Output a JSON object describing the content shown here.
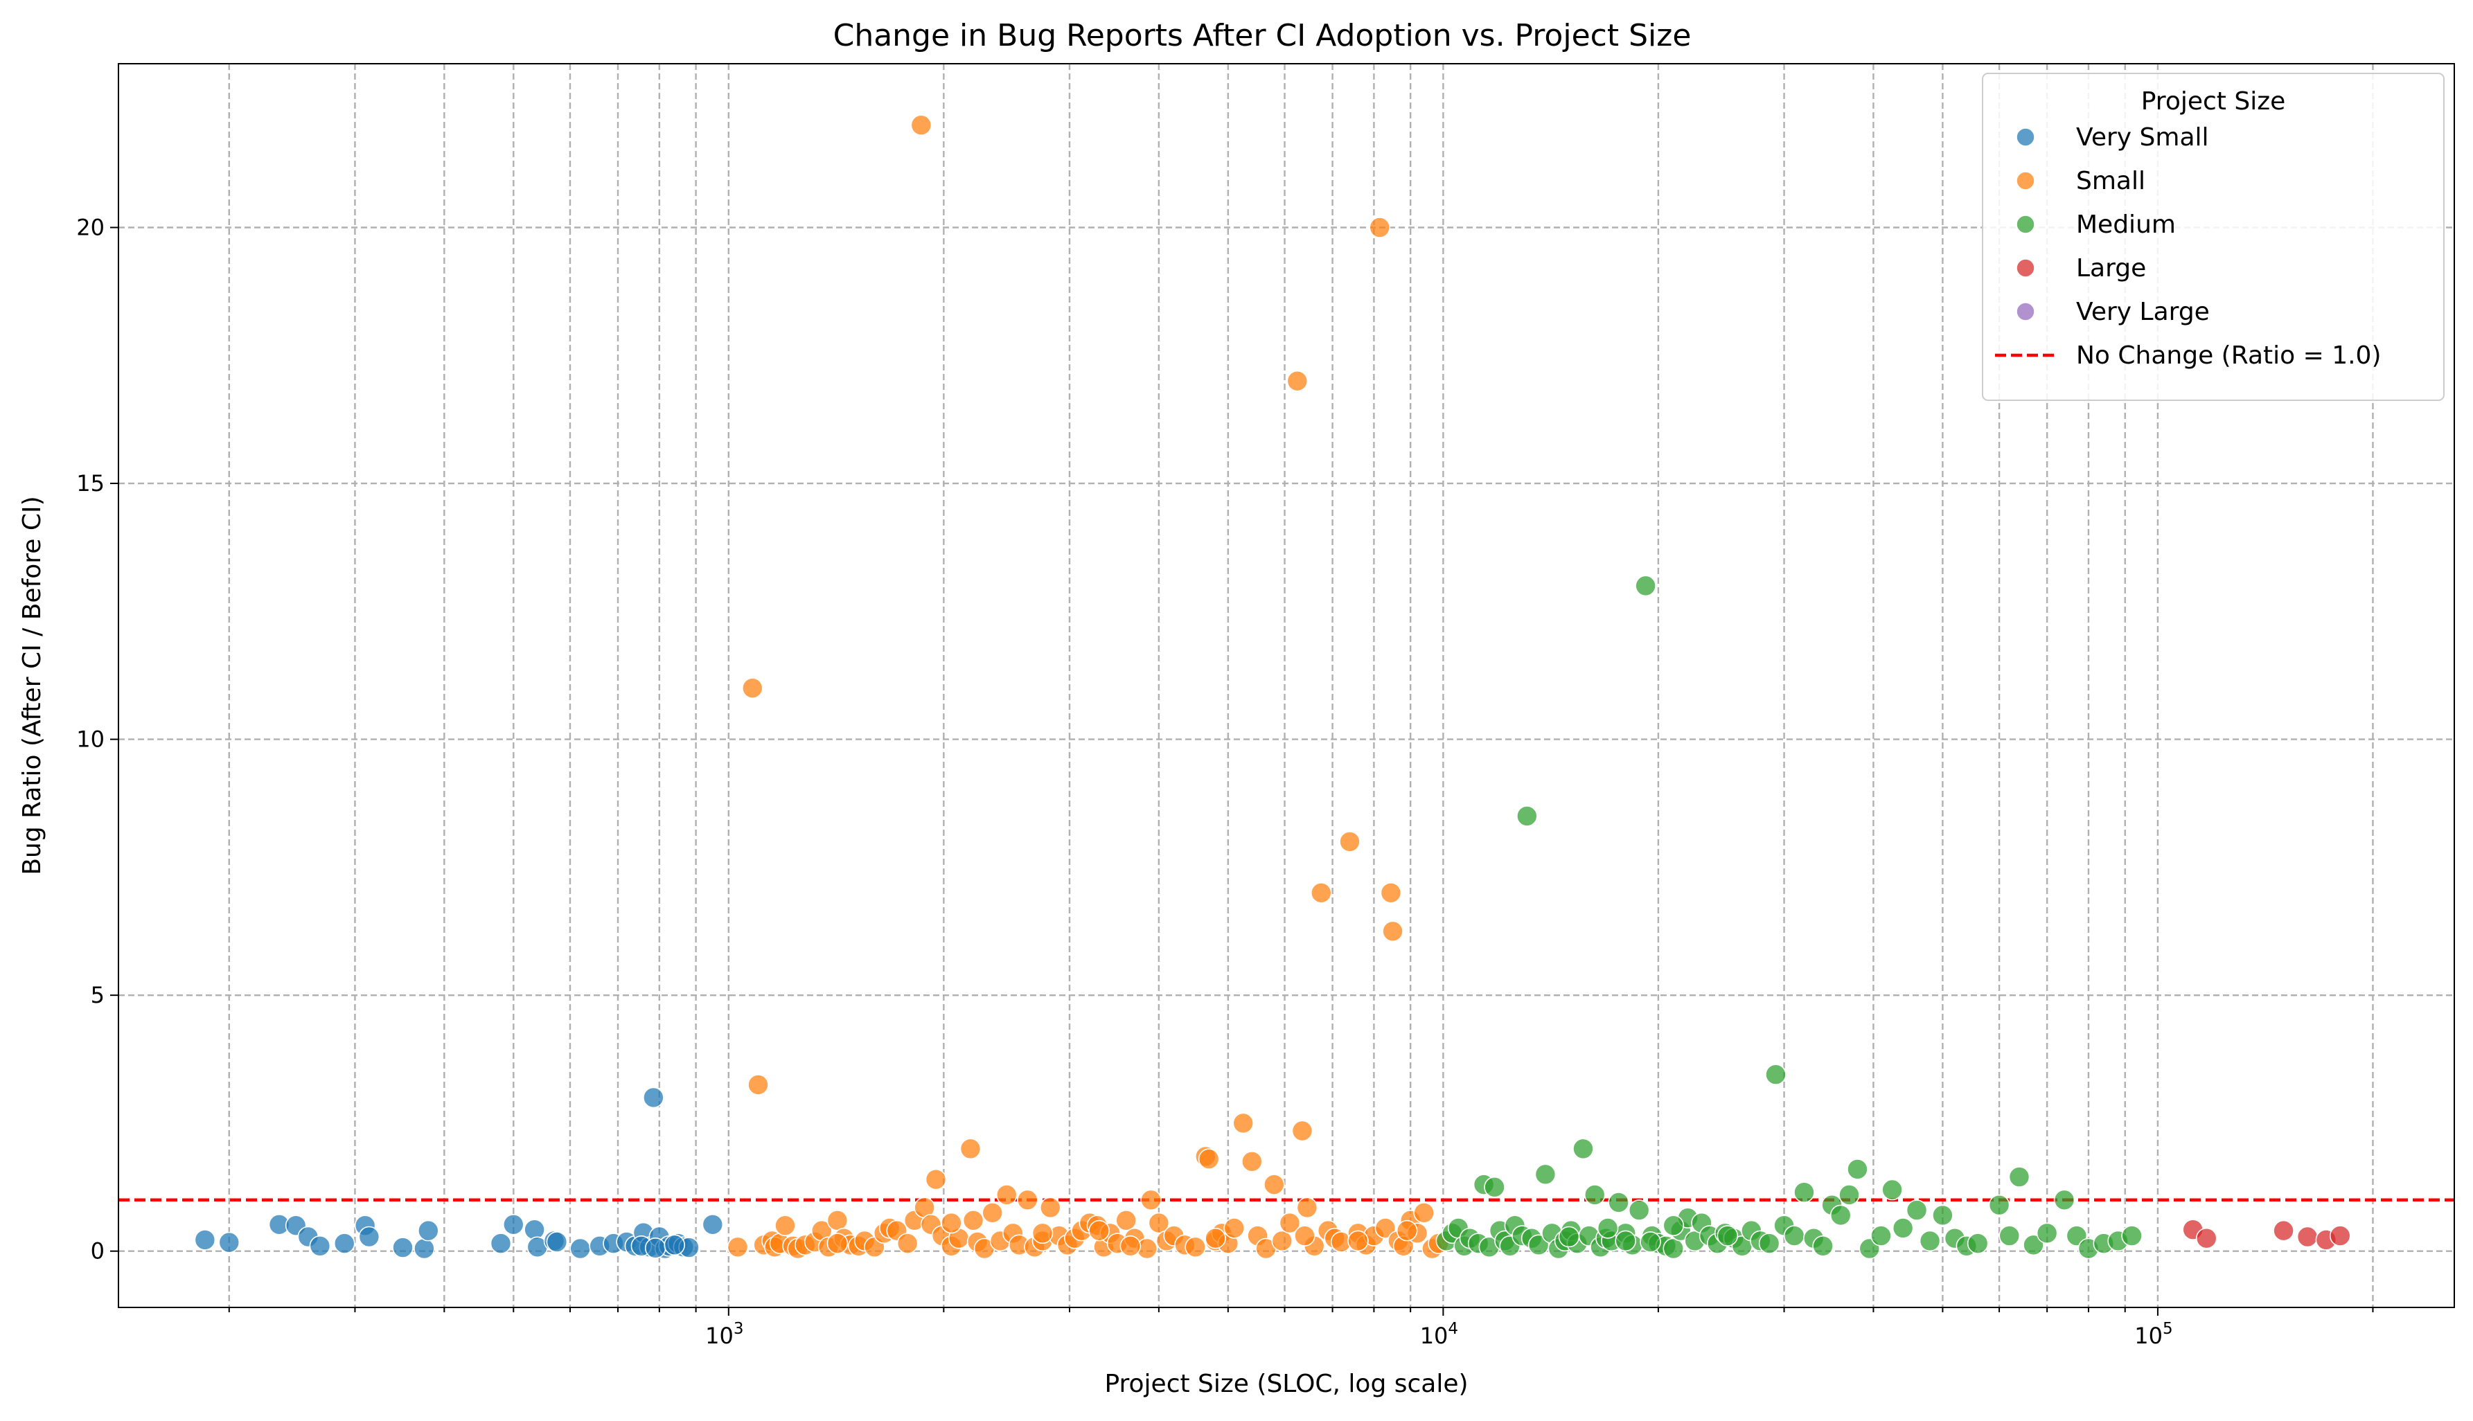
{
  "chart_data": {
    "type": "scatter",
    "title": "Change in Bug Reports After CI Adoption vs. Project Size",
    "xlabel": "Project Size (SLOC, log scale)",
    "ylabel": "Bug Ratio (After CI / Before CI)",
    "xscale": "log",
    "xlim": [
      140,
      260000
    ],
    "ylim": [
      -1.1,
      23.2
    ],
    "xticks": [
      {
        "value": 1000,
        "base": "10",
        "exp": "3"
      },
      {
        "value": 10000,
        "base": "10",
        "exp": "4"
      },
      {
        "value": 100000,
        "base": "10",
        "exp": "5"
      }
    ],
    "yticks": [
      0,
      5,
      10,
      15,
      20
    ],
    "grid": true,
    "legend": {
      "title": "Project Size",
      "placement": "top-right",
      "entries": [
        {
          "label": "Very Small",
          "color": "#1f77b4",
          "kind": "marker"
        },
        {
          "label": "Small",
          "color": "#ff7f0e",
          "kind": "marker"
        },
        {
          "label": "Medium",
          "color": "#2ca02c",
          "kind": "marker"
        },
        {
          "label": "Large",
          "color": "#d62728",
          "kind": "marker"
        },
        {
          "label": "Very Large",
          "color": "#9467bd",
          "kind": "marker"
        },
        {
          "label": "No Change (Ratio = 1.0)",
          "color": "#ff0000",
          "kind": "dashed-line"
        }
      ]
    },
    "reference_line": {
      "y": 1.0,
      "color": "#ff0000",
      "style": "dashed"
    },
    "series": [
      {
        "name": "Very Small",
        "color": "#1f77b4",
        "points": [
          [
            185,
            0.22
          ],
          [
            200,
            0.17
          ],
          [
            235,
            0.52
          ],
          [
            248,
            0.5
          ],
          [
            258,
            0.28
          ],
          [
            268,
            0.1
          ],
          [
            290,
            0.15
          ],
          [
            310,
            0.5
          ],
          [
            314,
            0.28
          ],
          [
            350,
            0.07
          ],
          [
            375,
            0.05
          ],
          [
            380,
            0.4
          ],
          [
            480,
            0.15
          ],
          [
            500,
            0.52
          ],
          [
            535,
            0.42
          ],
          [
            540,
            0.08
          ],
          [
            570,
            0.2
          ],
          [
            575,
            0.18
          ],
          [
            620,
            0.05
          ],
          [
            660,
            0.1
          ],
          [
            690,
            0.15
          ],
          [
            720,
            0.18
          ],
          [
            740,
            0.1
          ],
          [
            760,
            0.36
          ],
          [
            775,
            0.08
          ],
          [
            785,
            3.0
          ],
          [
            800,
            0.28
          ],
          [
            815,
            0.05
          ],
          [
            825,
            0.1
          ],
          [
            850,
            0.15
          ],
          [
            865,
            0.08
          ],
          [
            880,
            0.07
          ],
          [
            950,
            0.52
          ],
          [
            755,
            0.1
          ],
          [
            790,
            0.06
          ],
          [
            840,
            0.12
          ]
        ]
      },
      {
        "name": "Small",
        "color": "#ff7f0e",
        "points": [
          [
            1030,
            0.08
          ],
          [
            1080,
            11.0
          ],
          [
            1100,
            3.25
          ],
          [
            1120,
            0.12
          ],
          [
            1150,
            0.2
          ],
          [
            1160,
            0.08
          ],
          [
            1180,
            0.15
          ],
          [
            1200,
            0.5
          ],
          [
            1230,
            0.1
          ],
          [
            1250,
            0.05
          ],
          [
            1280,
            0.12
          ],
          [
            1320,
            0.18
          ],
          [
            1350,
            0.4
          ],
          [
            1380,
            0.08
          ],
          [
            1420,
            0.6
          ],
          [
            1450,
            0.25
          ],
          [
            1480,
            0.12
          ],
          [
            1520,
            0.1
          ],
          [
            1550,
            0.2
          ],
          [
            1600,
            0.08
          ],
          [
            1650,
            0.35
          ],
          [
            1680,
            0.45
          ],
          [
            1720,
            0.4
          ],
          [
            1780,
            0.15
          ],
          [
            1820,
            0.6
          ],
          [
            1860,
            22.0
          ],
          [
            1880,
            0.85
          ],
          [
            1920,
            0.52
          ],
          [
            1950,
            1.4
          ],
          [
            1990,
            0.3
          ],
          [
            2050,
            0.1
          ],
          [
            2100,
            0.25
          ],
          [
            2180,
            2.0
          ],
          [
            2200,
            0.6
          ],
          [
            2230,
            0.18
          ],
          [
            2280,
            0.05
          ],
          [
            2340,
            0.75
          ],
          [
            2400,
            0.2
          ],
          [
            2450,
            1.1
          ],
          [
            2500,
            0.35
          ],
          [
            2550,
            0.12
          ],
          [
            2620,
            1.0
          ],
          [
            2680,
            0.08
          ],
          [
            2750,
            0.2
          ],
          [
            2820,
            0.85
          ],
          [
            2900,
            0.3
          ],
          [
            2980,
            0.12
          ],
          [
            3050,
            0.25
          ],
          [
            3120,
            0.4
          ],
          [
            3200,
            0.55
          ],
          [
            3280,
            0.5
          ],
          [
            3350,
            0.08
          ],
          [
            3420,
            0.35
          ],
          [
            3500,
            0.15
          ],
          [
            3600,
            0.6
          ],
          [
            3700,
            0.25
          ],
          [
            3850,
            0.05
          ],
          [
            3900,
            1.0
          ],
          [
            4000,
            0.55
          ],
          [
            4100,
            0.2
          ],
          [
            4200,
            0.3
          ],
          [
            4350,
            0.12
          ],
          [
            4500,
            0.08
          ],
          [
            4650,
            1.85
          ],
          [
            4700,
            1.8
          ],
          [
            4800,
            0.2
          ],
          [
            4900,
            0.35
          ],
          [
            5000,
            0.15
          ],
          [
            5100,
            0.45
          ],
          [
            5250,
            2.5
          ],
          [
            5400,
            1.75
          ],
          [
            5500,
            0.3
          ],
          [
            5650,
            0.05
          ],
          [
            5800,
            1.3
          ],
          [
            5950,
            0.2
          ],
          [
            6100,
            0.55
          ],
          [
            6250,
            17.0
          ],
          [
            6350,
            2.35
          ],
          [
            6450,
            0.85
          ],
          [
            6600,
            0.1
          ],
          [
            6750,
            7.0
          ],
          [
            6900,
            0.4
          ],
          [
            7050,
            0.25
          ],
          [
            7200,
            0.18
          ],
          [
            7400,
            8.0
          ],
          [
            7600,
            0.35
          ],
          [
            7800,
            0.12
          ],
          [
            8000,
            0.3
          ],
          [
            8150,
            20.0
          ],
          [
            8300,
            0.45
          ],
          [
            8450,
            7.0
          ],
          [
            8500,
            6.25
          ],
          [
            8650,
            0.2
          ],
          [
            8800,
            0.1
          ],
          [
            9000,
            0.6
          ],
          [
            9200,
            0.35
          ],
          [
            9400,
            0.75
          ],
          [
            9650,
            0.05
          ],
          [
            9850,
            0.15
          ],
          [
            2750,
            0.35
          ],
          [
            3300,
            0.4
          ],
          [
            4800,
            0.25
          ],
          [
            6400,
            0.3
          ],
          [
            7600,
            0.2
          ],
          [
            8900,
            0.4
          ],
          [
            1420,
            0.15
          ],
          [
            2050,
            0.55
          ],
          [
            3650,
            0.1
          ]
        ]
      },
      {
        "name": "Medium",
        "color": "#2ca02c",
        "points": [
          [
            10100,
            0.2
          ],
          [
            10300,
            0.35
          ],
          [
            10500,
            0.45
          ],
          [
            10700,
            0.1
          ],
          [
            10900,
            0.25
          ],
          [
            11200,
            0.15
          ],
          [
            11400,
            1.3
          ],
          [
            11600,
            0.08
          ],
          [
            11800,
            1.25
          ],
          [
            12000,
            0.4
          ],
          [
            12200,
            0.2
          ],
          [
            12400,
            0.1
          ],
          [
            12600,
            0.5
          ],
          [
            12900,
            0.3
          ],
          [
            13100,
            8.5
          ],
          [
            13300,
            0.25
          ],
          [
            13600,
            0.12
          ],
          [
            13900,
            1.5
          ],
          [
            14200,
            0.35
          ],
          [
            14500,
            0.05
          ],
          [
            14800,
            0.2
          ],
          [
            15100,
            0.4
          ],
          [
            15400,
            0.15
          ],
          [
            15700,
            2.0
          ],
          [
            16000,
            0.3
          ],
          [
            16300,
            1.1
          ],
          [
            16600,
            0.08
          ],
          [
            16900,
            0.25
          ],
          [
            17200,
            0.2
          ],
          [
            17600,
            0.95
          ],
          [
            18000,
            0.35
          ],
          [
            18400,
            0.12
          ],
          [
            18800,
            0.8
          ],
          [
            19200,
            13.0
          ],
          [
            19600,
            0.3
          ],
          [
            20000,
            0.15
          ],
          [
            20500,
            0.1
          ],
          [
            21000,
            0.05
          ],
          [
            21500,
            0.4
          ],
          [
            22000,
            0.65
          ],
          [
            22500,
            0.2
          ],
          [
            23000,
            0.55
          ],
          [
            23600,
            0.3
          ],
          [
            24200,
            0.15
          ],
          [
            24800,
            0.35
          ],
          [
            25500,
            0.25
          ],
          [
            26200,
            0.1
          ],
          [
            27000,
            0.4
          ],
          [
            27800,
            0.2
          ],
          [
            28600,
            0.15
          ],
          [
            29200,
            3.45
          ],
          [
            30000,
            0.5
          ],
          [
            31000,
            0.3
          ],
          [
            32000,
            1.15
          ],
          [
            33000,
            0.25
          ],
          [
            34000,
            0.1
          ],
          [
            35000,
            0.9
          ],
          [
            36000,
            0.7
          ],
          [
            37000,
            1.1
          ],
          [
            38000,
            1.6
          ],
          [
            39500,
            0.05
          ],
          [
            41000,
            0.3
          ],
          [
            42500,
            1.2
          ],
          [
            44000,
            0.45
          ],
          [
            46000,
            0.8
          ],
          [
            48000,
            0.2
          ],
          [
            50000,
            0.7
          ],
          [
            52000,
            0.25
          ],
          [
            54000,
            0.1
          ],
          [
            56000,
            0.15
          ],
          [
            60000,
            0.9
          ],
          [
            62000,
            0.3
          ],
          [
            64000,
            1.45
          ],
          [
            67000,
            0.12
          ],
          [
            70000,
            0.35
          ],
          [
            74000,
            1.0
          ],
          [
            77000,
            0.3
          ],
          [
            80000,
            0.05
          ],
          [
            84000,
            0.15
          ],
          [
            88000,
            0.2
          ],
          [
            92000,
            0.3
          ],
          [
            18000,
            0.2
          ],
          [
            21000,
            0.5
          ],
          [
            25000,
            0.3
          ],
          [
            15000,
            0.28
          ],
          [
            17000,
            0.45
          ],
          [
            19500,
            0.18
          ]
        ]
      },
      {
        "name": "Large",
        "color": "#d62728",
        "points": [
          [
            112000,
            0.42
          ],
          [
            117000,
            0.25
          ],
          [
            150000,
            0.4
          ],
          [
            162000,
            0.28
          ],
          [
            172000,
            0.22
          ],
          [
            180000,
            0.3
          ]
        ]
      },
      {
        "name": "Very Large",
        "color": "#9467bd",
        "points": []
      }
    ]
  }
}
